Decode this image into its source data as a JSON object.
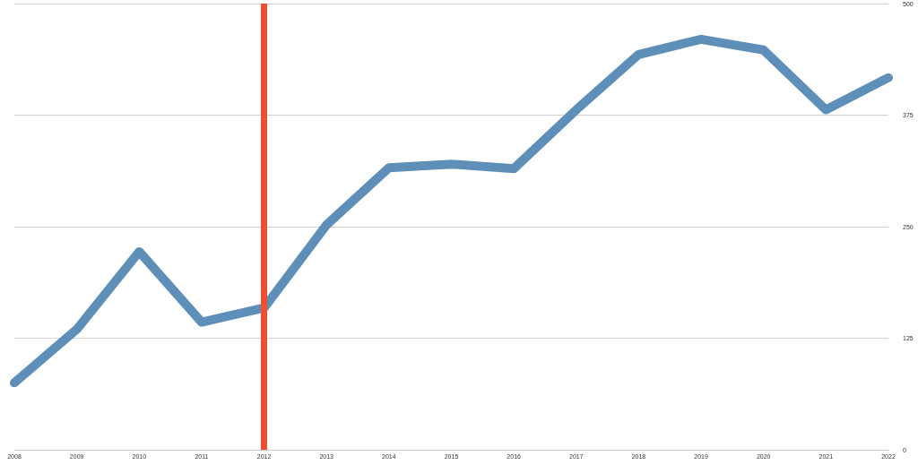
{
  "chart_data": {
    "type": "line",
    "x": [
      2008,
      2009,
      2010,
      2011,
      2012,
      2013,
      2014,
      2015,
      2016,
      2017,
      2018,
      2019,
      2020,
      2021,
      2022
    ],
    "values": [
      75,
      135,
      222,
      143,
      159,
      252,
      316,
      320,
      315,
      381,
      443,
      460,
      448,
      381,
      417
    ],
    "color": "#5d8fb8",
    "xlim": [
      2008,
      2022
    ],
    "xticks": [
      2008,
      2009,
      2010,
      2011,
      2012,
      2013,
      2014,
      2015,
      2016,
      2017,
      2018,
      2019,
      2020,
      2021,
      2022
    ],
    "ylim": [
      0,
      500
    ],
    "yticks": [
      0,
      125,
      250,
      375,
      500
    ],
    "grid": "y",
    "line_style": "solid",
    "ref_lines": [
      {
        "axis": "x",
        "value": 2012,
        "color": "#f04e2f"
      }
    ]
  }
}
